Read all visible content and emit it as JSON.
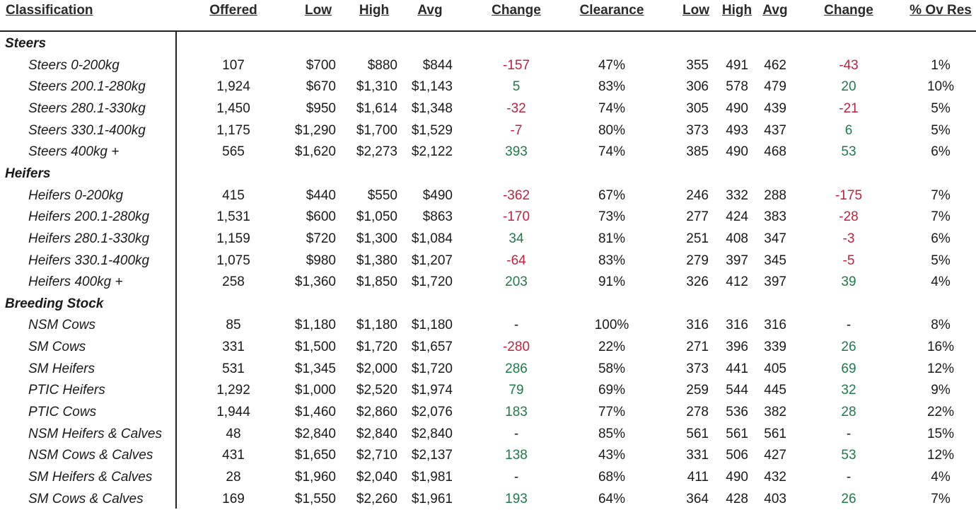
{
  "headers": {
    "classification": "Classification",
    "offered": "Offered",
    "low": "Low",
    "high": "High",
    "avg": "Avg",
    "change": "Change",
    "clearance": "Clearance",
    "low2": "Low",
    "high2": "High",
    "avg2": "Avg",
    "change2": "Change",
    "ov_res": "% Ov Res"
  },
  "colors": {
    "negative": "#c0223d",
    "positive": "#1f7a4a"
  },
  "rows": [
    {
      "type": "group",
      "label": "Steers"
    },
    {
      "type": "item",
      "label": "Steers 0-200kg",
      "offered": "107",
      "low": "$700",
      "high": "$880",
      "avg": "$844",
      "change": "-157",
      "change_sign": "neg",
      "clearance": "47%",
      "low2": "355",
      "high2": "491",
      "avg2": "462",
      "change2": "-43",
      "change2_sign": "neg",
      "ov_res": "1%"
    },
    {
      "type": "item",
      "label": "Steers 200.1-280kg",
      "offered": "1,924",
      "low": "$670",
      "high": "$1,310",
      "avg": "$1,143",
      "change": "5",
      "change_sign": "pos",
      "clearance": "83%",
      "low2": "306",
      "high2": "578",
      "avg2": "479",
      "change2": "20",
      "change2_sign": "pos",
      "ov_res": "10%"
    },
    {
      "type": "item",
      "label": "Steers 280.1-330kg",
      "offered": "1,450",
      "low": "$950",
      "high": "$1,614",
      "avg": "$1,348",
      "change": "-32",
      "change_sign": "neg",
      "clearance": "74%",
      "low2": "305",
      "high2": "490",
      "avg2": "439",
      "change2": "-21",
      "change2_sign": "neg",
      "ov_res": "5%"
    },
    {
      "type": "item",
      "label": "Steers 330.1-400kg",
      "offered": "1,175",
      "low": "$1,290",
      "high": "$1,700",
      "avg": "$1,529",
      "change": "-7",
      "change_sign": "neg",
      "clearance": "80%",
      "low2": "373",
      "high2": "493",
      "avg2": "437",
      "change2": "6",
      "change2_sign": "pos",
      "ov_res": "5%"
    },
    {
      "type": "item",
      "label": "Steers 400kg +",
      "offered": "565",
      "low": "$1,620",
      "high": "$2,273",
      "avg": "$2,122",
      "change": "393",
      "change_sign": "pos",
      "clearance": "74%",
      "low2": "385",
      "high2": "490",
      "avg2": "468",
      "change2": "53",
      "change2_sign": "pos",
      "ov_res": "6%"
    },
    {
      "type": "group",
      "label": "Heifers"
    },
    {
      "type": "item",
      "label": "Heifers 0-200kg",
      "offered": "415",
      "low": "$440",
      "high": "$550",
      "avg": "$490",
      "change": "-362",
      "change_sign": "neg",
      "clearance": "67%",
      "low2": "246",
      "high2": "332",
      "avg2": "288",
      "change2": "-175",
      "change2_sign": "neg",
      "ov_res": "7%"
    },
    {
      "type": "item",
      "label": "Heifers 200.1-280kg",
      "offered": "1,531",
      "low": "$600",
      "high": "$1,050",
      "avg": "$863",
      "change": "-170",
      "change_sign": "neg",
      "clearance": "73%",
      "low2": "277",
      "high2": "424",
      "avg2": "383",
      "change2": "-28",
      "change2_sign": "neg",
      "ov_res": "7%"
    },
    {
      "type": "item",
      "label": "Heifers 280.1-330kg",
      "offered": "1,159",
      "low": "$720",
      "high": "$1,300",
      "avg": "$1,084",
      "change": "34",
      "change_sign": "pos",
      "clearance": "81%",
      "low2": "251",
      "high2": "408",
      "avg2": "347",
      "change2": "-3",
      "change2_sign": "neg",
      "ov_res": "6%"
    },
    {
      "type": "item",
      "label": "Heifers 330.1-400kg",
      "offered": "1,075",
      "low": "$980",
      "high": "$1,380",
      "avg": "$1,207",
      "change": "-64",
      "change_sign": "neg",
      "clearance": "83%",
      "low2": "279",
      "high2": "397",
      "avg2": "345",
      "change2": "-5",
      "change2_sign": "neg",
      "ov_res": "5%"
    },
    {
      "type": "item",
      "label": "Heifers 400kg +",
      "offered": "258",
      "low": "$1,360",
      "high": "$1,850",
      "avg": "$1,720",
      "change": "203",
      "change_sign": "pos",
      "clearance": "91%",
      "low2": "326",
      "high2": "412",
      "avg2": "397",
      "change2": "39",
      "change2_sign": "pos",
      "ov_res": "4%"
    },
    {
      "type": "group",
      "label": "Breeding Stock"
    },
    {
      "type": "item",
      "label": "NSM Cows",
      "offered": "85",
      "low": "$1,180",
      "high": "$1,180",
      "avg": "$1,180",
      "change": "-",
      "change_sign": "none",
      "clearance": "100%",
      "low2": "316",
      "high2": "316",
      "avg2": "316",
      "change2": "-",
      "change2_sign": "none",
      "ov_res": "8%"
    },
    {
      "type": "item",
      "label": "SM Cows",
      "offered": "331",
      "low": "$1,500",
      "high": "$1,720",
      "avg": "$1,657",
      "change": "-280",
      "change_sign": "neg",
      "clearance": "22%",
      "low2": "271",
      "high2": "396",
      "avg2": "339",
      "change2": "26",
      "change2_sign": "pos",
      "ov_res": "16%"
    },
    {
      "type": "item",
      "label": "SM Heifers",
      "offered": "531",
      "low": "$1,345",
      "high": "$2,000",
      "avg": "$1,720",
      "change": "286",
      "change_sign": "pos",
      "clearance": "58%",
      "low2": "373",
      "high2": "441",
      "avg2": "405",
      "change2": "69",
      "change2_sign": "pos",
      "ov_res": "12%"
    },
    {
      "type": "item",
      "label": "PTIC Heifers",
      "offered": "1,292",
      "low": "$1,000",
      "high": "$2,520",
      "avg": "$1,974",
      "change": "79",
      "change_sign": "pos",
      "clearance": "69%",
      "low2": "259",
      "high2": "544",
      "avg2": "445",
      "change2": "32",
      "change2_sign": "pos",
      "ov_res": "9%"
    },
    {
      "type": "item",
      "label": "PTIC Cows",
      "offered": "1,944",
      "low": "$1,460",
      "high": "$2,860",
      "avg": "$2,076",
      "change": "183",
      "change_sign": "pos",
      "clearance": "77%",
      "low2": "278",
      "high2": "536",
      "avg2": "382",
      "change2": "28",
      "change2_sign": "pos",
      "ov_res": "22%"
    },
    {
      "type": "item",
      "label": "NSM Heifers & Calves",
      "offered": "48",
      "low": "$2,840",
      "high": "$2,840",
      "avg": "$2,840",
      "change": "-",
      "change_sign": "none",
      "clearance": "85%",
      "low2": "561",
      "high2": "561",
      "avg2": "561",
      "change2": "-",
      "change2_sign": "none",
      "ov_res": "15%"
    },
    {
      "type": "item",
      "label": "NSM Cows & Calves",
      "offered": "431",
      "low": "$1,650",
      "high": "$2,710",
      "avg": "$2,137",
      "change": "138",
      "change_sign": "pos",
      "clearance": "43%",
      "low2": "331",
      "high2": "506",
      "avg2": "427",
      "change2": "53",
      "change2_sign": "pos",
      "ov_res": "12%"
    },
    {
      "type": "item",
      "label": "SM Heifers & Calves",
      "offered": "28",
      "low": "$1,960",
      "high": "$2,040",
      "avg": "$1,981",
      "change": "-",
      "change_sign": "none",
      "clearance": "68%",
      "low2": "411",
      "high2": "490",
      "avg2": "432",
      "change2": "-",
      "change2_sign": "none",
      "ov_res": "4%"
    },
    {
      "type": "item",
      "label": "SM Cows & Calves",
      "offered": "169",
      "low": "$1,550",
      "high": "$2,260",
      "avg": "$1,961",
      "change": "193",
      "change_sign": "pos",
      "clearance": "64%",
      "low2": "364",
      "high2": "428",
      "avg2": "403",
      "change2": "26",
      "change2_sign": "pos",
      "ov_res": "7%"
    }
  ]
}
